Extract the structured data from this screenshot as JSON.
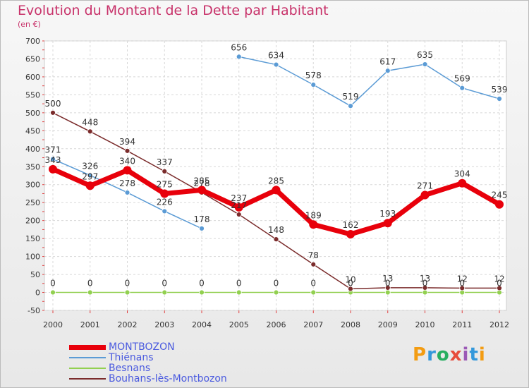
{
  "header": {
    "title": "Evolution du Montant de la Dette par Habitant",
    "subtitle": "(en €)"
  },
  "logo": {
    "text": "Proxiti"
  },
  "chart_data": {
    "type": "line",
    "title": "Evolution du Montant de la Dette par Habitant",
    "subtitle": "(en €)",
    "x": [
      "2000",
      "2001",
      "2002",
      "2003",
      "2004",
      "2005",
      "2006",
      "2007",
      "2008",
      "2009",
      "2010",
      "2011",
      "2012"
    ],
    "ylim": [
      -50,
      700
    ],
    "yticks": [
      -50,
      0,
      50,
      100,
      150,
      200,
      250,
      300,
      350,
      400,
      450,
      500,
      550,
      600,
      650,
      700
    ],
    "grid": true,
    "legend_position": "bottom-left",
    "series": [
      {
        "name": "MONTBOZON",
        "color": "#e8000b",
        "values": [
          343,
          297,
          340,
          275,
          285,
          237,
          285,
          189,
          162,
          193,
          271,
          304,
          245
        ]
      },
      {
        "name": "Thiénans",
        "color": "#5b9bd5",
        "values": [
          371,
          326,
          278,
          226,
          178,
          656,
          634,
          578,
          519,
          617,
          635,
          569,
          539
        ]
      },
      {
        "name": "Besnans",
        "color": "#92d050",
        "values": [
          0,
          0,
          0,
          0,
          0,
          0,
          0,
          0,
          0,
          0,
          0,
          0,
          0
        ]
      },
      {
        "name": "Bouhans-lès-Montbozon",
        "color": "#7b2c2c",
        "values": [
          500,
          448,
          394,
          337,
          278,
          217,
          148,
          78,
          10,
          13,
          13,
          12,
          12
        ]
      }
    ]
  }
}
